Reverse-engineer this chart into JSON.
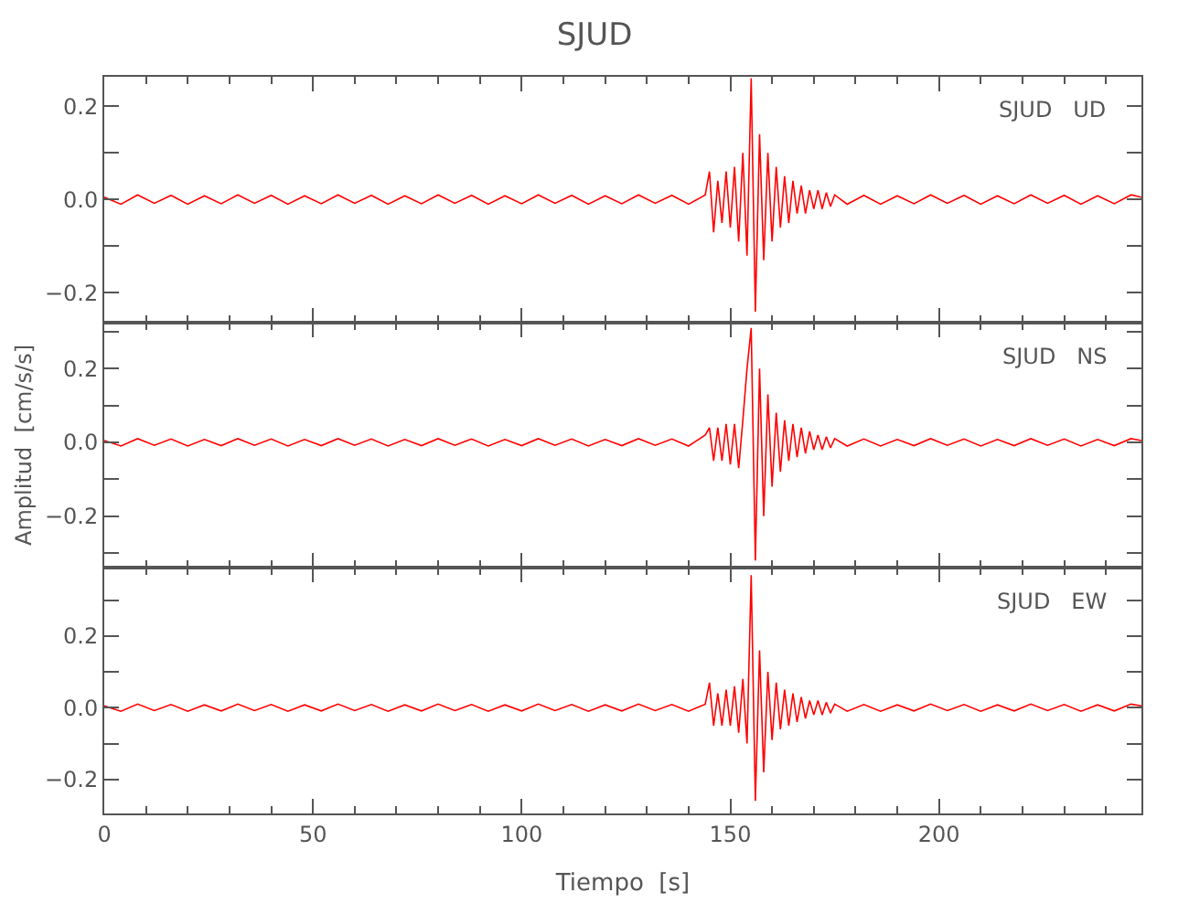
{
  "chart_data": [
    {
      "type": "line",
      "title": "SJUD",
      "annotations": [
        "SJUD   UD"
      ],
      "xlim": [
        0,
        248.5
      ],
      "xticks": [
        0,
        50,
        100,
        150,
        200
      ],
      "ylim": [
        -0.263,
        0.263
      ],
      "yticks": [
        {
          "value": -0.2,
          "label": "−0.2"
        },
        {
          "value": -0.1,
          "label": null
        },
        {
          "value": 0,
          "label": "0.0"
        },
        {
          "value": 0.1,
          "label": null
        },
        {
          "value": 0.2,
          "label": "0.2"
        }
      ],
      "tick_labels": "y",
      "line_style": "solid",
      "x": [
        0,
        4,
        8,
        12,
        16,
        20,
        24,
        28,
        32,
        36,
        40,
        44,
        48,
        52,
        56,
        60,
        64,
        68,
        72,
        76,
        80,
        84,
        88,
        92,
        96,
        100,
        104,
        108,
        112,
        116,
        120,
        124,
        128,
        132,
        136,
        140,
        144,
        145,
        146,
        147,
        148,
        149,
        150,
        151,
        152,
        153,
        154,
        155,
        156,
        157,
        158,
        159,
        160,
        161,
        162,
        163,
        164,
        165,
        166,
        167,
        168,
        169,
        170,
        171,
        172,
        173,
        174,
        175,
        178,
        182,
        186,
        190,
        194,
        198,
        202,
        206,
        210,
        214,
        218,
        222,
        226,
        230,
        234,
        238,
        242,
        246,
        248.5
      ],
      "series": [
        {
          "color": "#ff0000",
          "values": [
            0.005,
            -0.01,
            0.01,
            -0.008,
            0.009,
            -0.01,
            0.008,
            -0.009,
            0.01,
            -0.008,
            0.009,
            -0.01,
            0.008,
            -0.009,
            0.01,
            -0.008,
            0.009,
            -0.01,
            0.008,
            -0.009,
            0.01,
            -0.008,
            0.009,
            -0.01,
            0.008,
            -0.009,
            0.01,
            -0.008,
            0.009,
            -0.01,
            0.008,
            -0.009,
            0.01,
            -0.008,
            0.009,
            -0.01,
            0.01,
            0.06,
            -0.07,
            0.04,
            -0.05,
            0.06,
            -0.06,
            0.07,
            -0.09,
            0.1,
            -0.12,
            0.26,
            -0.24,
            0.14,
            -0.13,
            0.1,
            -0.09,
            0.07,
            -0.06,
            0.05,
            -0.05,
            0.04,
            -0.03,
            0.03,
            -0.03,
            0.02,
            -0.02,
            0.02,
            -0.02,
            0.015,
            -0.015,
            0.01,
            -0.01,
            0.009,
            -0.01,
            0.008,
            -0.009,
            0.01,
            -0.008,
            0.009,
            -0.01,
            0.008,
            -0.009,
            0.01,
            -0.008,
            0.009,
            -0.01,
            0.008,
            -0.009,
            0.01,
            0.005
          ]
        }
      ]
    },
    {
      "type": "line",
      "ylabel": "Amplitud  [cm/s/s]",
      "annotations": [
        "SJUD   NS"
      ],
      "xlim": [
        0,
        248.5
      ],
      "xticks": [
        0,
        50,
        100,
        150,
        200
      ],
      "ylim": [
        -0.34,
        0.325
      ],
      "yticks": [
        {
          "value": -0.3,
          "label": null
        },
        {
          "value": -0.2,
          "label": "−0.2"
        },
        {
          "value": -0.1,
          "label": null
        },
        {
          "value": 0,
          "label": "0.0"
        },
        {
          "value": 0.1,
          "label": null
        },
        {
          "value": 0.2,
          "label": "0.2"
        },
        {
          "value": 0.3,
          "label": null
        }
      ],
      "tick_labels": "y",
      "line_style": "solid",
      "x": [
        0,
        4,
        8,
        12,
        16,
        20,
        24,
        28,
        32,
        36,
        40,
        44,
        48,
        52,
        56,
        60,
        64,
        68,
        72,
        76,
        80,
        84,
        88,
        92,
        96,
        100,
        104,
        108,
        112,
        116,
        120,
        124,
        128,
        132,
        136,
        140,
        144,
        145,
        146,
        147,
        148,
        149,
        150,
        151,
        152,
        153,
        154,
        155,
        156,
        157,
        158,
        159,
        160,
        161,
        162,
        163,
        164,
        165,
        166,
        167,
        168,
        169,
        170,
        171,
        172,
        173,
        174,
        175,
        178,
        182,
        186,
        190,
        194,
        198,
        202,
        206,
        210,
        214,
        218,
        222,
        226,
        230,
        234,
        238,
        242,
        246,
        248.5
      ],
      "series": [
        {
          "color": "#ff0000",
          "values": [
            0.005,
            -0.01,
            0.01,
            -0.008,
            0.009,
            -0.01,
            0.008,
            -0.009,
            0.01,
            -0.008,
            0.009,
            -0.01,
            0.008,
            -0.009,
            0.01,
            -0.008,
            0.009,
            -0.01,
            0.008,
            -0.009,
            0.01,
            -0.008,
            0.009,
            -0.01,
            0.008,
            -0.009,
            0.01,
            -0.008,
            0.009,
            -0.01,
            0.008,
            -0.009,
            0.01,
            -0.008,
            0.009,
            -0.01,
            0.02,
            0.04,
            -0.05,
            0.04,
            -0.05,
            0.05,
            -0.06,
            0.05,
            -0.07,
            0.06,
            0.2,
            0.31,
            -0.32,
            0.2,
            -0.2,
            0.13,
            -0.12,
            0.08,
            -0.08,
            0.06,
            -0.05,
            0.05,
            -0.04,
            0.04,
            -0.03,
            0.03,
            -0.02,
            0.02,
            -0.02,
            0.015,
            -0.015,
            0.01,
            -0.01,
            0.009,
            -0.01,
            0.008,
            -0.009,
            0.01,
            -0.008,
            0.009,
            -0.01,
            0.008,
            -0.009,
            0.01,
            -0.008,
            0.009,
            -0.01,
            0.008,
            -0.009,
            0.01,
            0.005
          ]
        }
      ]
    },
    {
      "type": "line",
      "xlabel": "Tiempo  [s]",
      "annotations": [
        "SJUD   EW"
      ],
      "xlim": [
        0,
        248.5
      ],
      "xticks": [
        0,
        50,
        100,
        150,
        200
      ],
      "ylim": [
        -0.295,
        0.39
      ],
      "yticks": [
        {
          "value": -0.2,
          "label": "−0.2"
        },
        {
          "value": -0.1,
          "label": null
        },
        {
          "value": 0,
          "label": "0.0"
        },
        {
          "value": 0.1,
          "label": null
        },
        {
          "value": 0.2,
          "label": "0.2"
        },
        {
          "value": 0.3,
          "label": null
        }
      ],
      "line_style": "solid",
      "x": [
        0,
        4,
        8,
        12,
        16,
        20,
        24,
        28,
        32,
        36,
        40,
        44,
        48,
        52,
        56,
        60,
        64,
        68,
        72,
        76,
        80,
        84,
        88,
        92,
        96,
        100,
        104,
        108,
        112,
        116,
        120,
        124,
        128,
        132,
        136,
        140,
        144,
        145,
        146,
        147,
        148,
        149,
        150,
        151,
        152,
        153,
        154,
        155,
        156,
        157,
        158,
        159,
        160,
        161,
        162,
        163,
        164,
        165,
        166,
        167,
        168,
        169,
        170,
        171,
        172,
        173,
        174,
        175,
        178,
        182,
        186,
        190,
        194,
        198,
        202,
        206,
        210,
        214,
        218,
        222,
        226,
        230,
        234,
        238,
        242,
        246,
        248.5
      ],
      "series": [
        {
          "color": "#ff0000",
          "values": [
            0.005,
            -0.01,
            0.01,
            -0.008,
            0.009,
            -0.01,
            0.008,
            -0.009,
            0.01,
            -0.008,
            0.009,
            -0.01,
            0.008,
            -0.009,
            0.01,
            -0.008,
            0.009,
            -0.01,
            0.008,
            -0.009,
            0.01,
            -0.008,
            0.009,
            -0.01,
            0.008,
            -0.009,
            0.01,
            -0.008,
            0.009,
            -0.01,
            0.008,
            -0.009,
            0.01,
            -0.008,
            0.009,
            -0.01,
            0.01,
            0.07,
            -0.05,
            0.04,
            -0.05,
            0.05,
            -0.05,
            0.06,
            -0.07,
            0.08,
            -0.1,
            0.37,
            -0.26,
            0.16,
            -0.18,
            0.1,
            -0.09,
            0.07,
            -0.06,
            0.05,
            -0.05,
            0.04,
            -0.04,
            0.03,
            -0.03,
            0.02,
            -0.02,
            0.02,
            -0.02,
            0.015,
            -0.015,
            0.01,
            -0.01,
            0.009,
            -0.01,
            0.008,
            -0.009,
            0.01,
            -0.008,
            0.009,
            -0.01,
            0.008,
            -0.009,
            0.01,
            -0.008,
            0.009,
            -0.01,
            0.008,
            -0.009,
            0.01,
            0.005
          ]
        }
      ]
    }
  ]
}
